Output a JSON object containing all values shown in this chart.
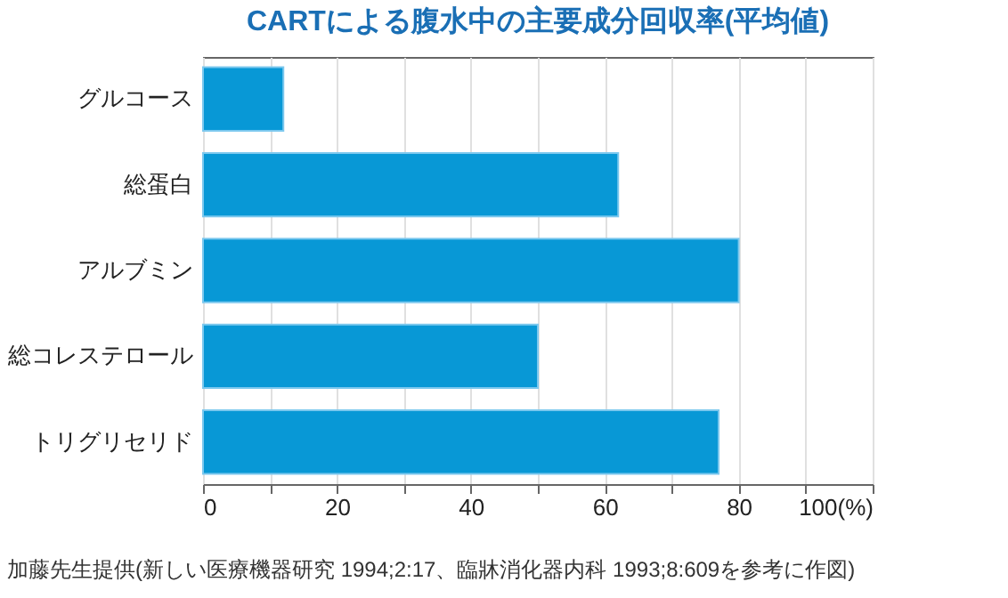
{
  "chart_data": {
    "type": "bar",
    "orientation": "horizontal",
    "title": "CARTによる腹水中の主要成分回収率(平均値)",
    "categories": [
      "グルコース",
      "総蛋白",
      "アルブミン",
      "総コレステロール",
      "トリグリセリド"
    ],
    "values": [
      12,
      62,
      80,
      50,
      77
    ],
    "color": "#0898d6",
    "xlim": [
      0,
      100
    ],
    "xticks": [
      0,
      {
        "value": 10,
        "label": null
      },
      20,
      {
        "value": 30,
        "label": null
      },
      40,
      {
        "value": 50,
        "label": null
      },
      60,
      {
        "value": 70,
        "label": null
      },
      80,
      {
        "value": 90,
        "label": null
      },
      {
        "value": 100,
        "label": "100(%)"
      }
    ],
    "grid": true,
    "annotations": [
      "加藤先生提供(新しい医療機器研究 1994;2:17、臨牀消化器内科 1993;8:609を参考に作図)"
    ]
  }
}
